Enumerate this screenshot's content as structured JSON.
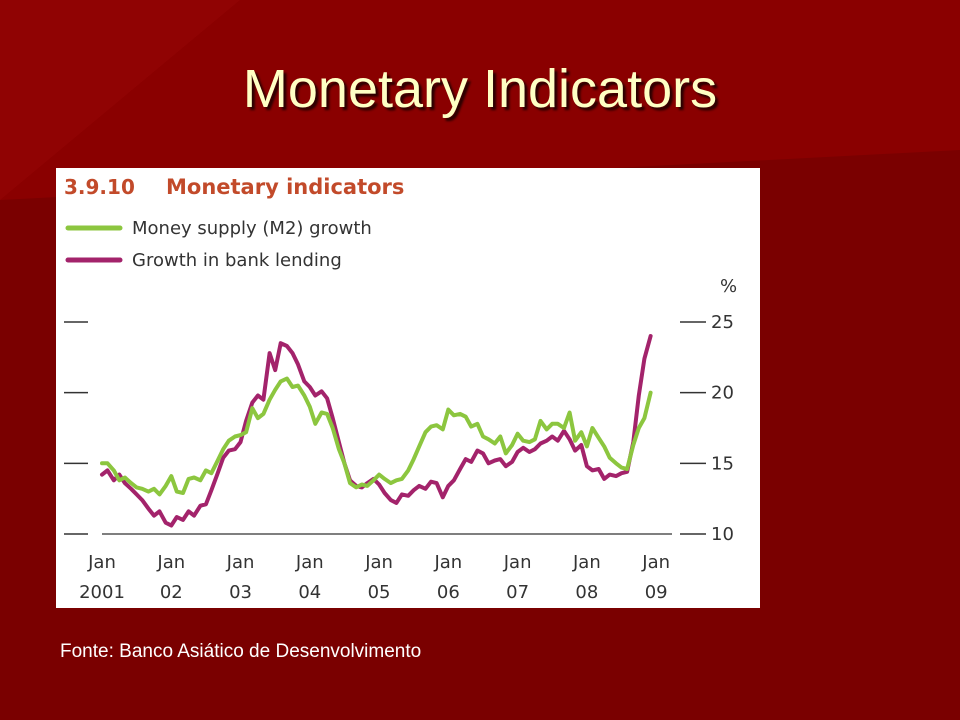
{
  "slide": {
    "title": "Monetary Indicators",
    "source": "Fonte: Banco Asiático de Desenvolvimento"
  },
  "colors": {
    "background": "#7a0000",
    "title": "#ffffc4",
    "m2": "#8cc63f",
    "lending": "#a3236b",
    "chart_title": "#c24a2a",
    "axis_text": "#333333"
  },
  "chart_data": {
    "type": "line",
    "figure_number": "3.9.10",
    "title": "Monetary indicators",
    "unit_label": "%",
    "ylim": [
      10,
      25
    ],
    "y_ticks": [
      10,
      15,
      20,
      25
    ],
    "xlim": [
      2001.0,
      2009.2
    ],
    "x_tick_positions": [
      2001,
      2002,
      2003,
      2004,
      2005,
      2006,
      2007,
      2008,
      2009
    ],
    "x_tick_labels": [
      [
        "Jan",
        "2001"
      ],
      [
        "Jan",
        "02"
      ],
      [
        "Jan",
        "03"
      ],
      [
        "Jan",
        "04"
      ],
      [
        "Jan",
        "05"
      ],
      [
        "Jan",
        "06"
      ],
      [
        "Jan",
        "07"
      ],
      [
        "Jan",
        "08"
      ],
      [
        "Jan",
        "09"
      ]
    ],
    "legend_position": "top-left",
    "grid": false,
    "series": [
      {
        "name": "Money supply (M2) growth",
        "color": "#8cc63f",
        "points": [
          [
            2001.0,
            15.0
          ],
          [
            2001.08,
            15.0
          ],
          [
            2001.17,
            14.5
          ],
          [
            2001.25,
            13.8
          ],
          [
            2001.33,
            14.0
          ],
          [
            2001.42,
            13.6
          ],
          [
            2001.5,
            13.3
          ],
          [
            2001.58,
            13.2
          ],
          [
            2001.67,
            13.0
          ],
          [
            2001.75,
            13.2
          ],
          [
            2001.83,
            12.8
          ],
          [
            2001.92,
            13.4
          ],
          [
            2002.0,
            14.1
          ],
          [
            2002.08,
            13.0
          ],
          [
            2002.17,
            12.9
          ],
          [
            2002.25,
            13.9
          ],
          [
            2002.33,
            14.0
          ],
          [
            2002.42,
            13.8
          ],
          [
            2002.5,
            14.5
          ],
          [
            2002.58,
            14.3
          ],
          [
            2002.67,
            15.2
          ],
          [
            2002.75,
            16.0
          ],
          [
            2002.83,
            16.6
          ],
          [
            2002.92,
            16.9
          ],
          [
            2003.0,
            17.0
          ],
          [
            2003.08,
            17.2
          ],
          [
            2003.17,
            18.9
          ],
          [
            2003.25,
            18.2
          ],
          [
            2003.33,
            18.5
          ],
          [
            2003.42,
            19.5
          ],
          [
            2003.5,
            20.2
          ],
          [
            2003.58,
            20.8
          ],
          [
            2003.67,
            21.0
          ],
          [
            2003.75,
            20.4
          ],
          [
            2003.83,
            20.5
          ],
          [
            2003.92,
            19.8
          ],
          [
            2004.0,
            19.0
          ],
          [
            2004.08,
            17.8
          ],
          [
            2004.17,
            18.6
          ],
          [
            2004.25,
            18.5
          ],
          [
            2004.33,
            17.5
          ],
          [
            2004.42,
            16.0
          ],
          [
            2004.5,
            15.0
          ],
          [
            2004.58,
            13.6
          ],
          [
            2004.67,
            13.3
          ],
          [
            2004.75,
            13.5
          ],
          [
            2004.83,
            13.4
          ],
          [
            2004.92,
            13.8
          ],
          [
            2005.0,
            14.2
          ],
          [
            2005.08,
            13.9
          ],
          [
            2005.17,
            13.6
          ],
          [
            2005.25,
            13.8
          ],
          [
            2005.33,
            13.9
          ],
          [
            2005.42,
            14.5
          ],
          [
            2005.5,
            15.3
          ],
          [
            2005.58,
            16.2
          ],
          [
            2005.67,
            17.2
          ],
          [
            2005.75,
            17.6
          ],
          [
            2005.83,
            17.7
          ],
          [
            2005.92,
            17.4
          ],
          [
            2006.0,
            18.8
          ],
          [
            2006.08,
            18.4
          ],
          [
            2006.17,
            18.5
          ],
          [
            2006.25,
            18.3
          ],
          [
            2006.33,
            17.6
          ],
          [
            2006.42,
            17.8
          ],
          [
            2006.5,
            16.9
          ],
          [
            2006.58,
            16.7
          ],
          [
            2006.67,
            16.4
          ],
          [
            2006.75,
            16.9
          ],
          [
            2006.83,
            15.7
          ],
          [
            2006.92,
            16.3
          ],
          [
            2007.0,
            17.1
          ],
          [
            2007.08,
            16.6
          ],
          [
            2007.17,
            16.5
          ],
          [
            2007.25,
            16.7
          ],
          [
            2007.33,
            18.0
          ],
          [
            2007.42,
            17.4
          ],
          [
            2007.5,
            17.8
          ],
          [
            2007.58,
            17.8
          ],
          [
            2007.67,
            17.5
          ],
          [
            2007.75,
            18.6
          ],
          [
            2007.83,
            16.6
          ],
          [
            2007.92,
            17.2
          ],
          [
            2008.0,
            16.2
          ],
          [
            2008.08,
            17.5
          ],
          [
            2008.17,
            16.8
          ],
          [
            2008.25,
            16.2
          ],
          [
            2008.33,
            15.4
          ],
          [
            2008.42,
            15.0
          ],
          [
            2008.5,
            14.7
          ],
          [
            2008.58,
            14.6
          ],
          [
            2008.67,
            16.3
          ],
          [
            2008.75,
            17.5
          ],
          [
            2008.83,
            18.2
          ],
          [
            2008.92,
            20.0
          ]
        ]
      },
      {
        "name": "Growth in bank lending",
        "color": "#a3236b",
        "points": [
          [
            2001.0,
            14.2
          ],
          [
            2001.08,
            14.5
          ],
          [
            2001.17,
            13.8
          ],
          [
            2001.25,
            14.2
          ],
          [
            2001.33,
            13.6
          ],
          [
            2001.42,
            13.2
          ],
          [
            2001.5,
            12.8
          ],
          [
            2001.58,
            12.4
          ],
          [
            2001.67,
            11.8
          ],
          [
            2001.75,
            11.3
          ],
          [
            2001.83,
            11.6
          ],
          [
            2001.92,
            10.8
          ],
          [
            2002.0,
            10.6
          ],
          [
            2002.08,
            11.2
          ],
          [
            2002.17,
            11.0
          ],
          [
            2002.25,
            11.6
          ],
          [
            2002.33,
            11.3
          ],
          [
            2002.42,
            12.0
          ],
          [
            2002.5,
            12.1
          ],
          [
            2002.58,
            13.1
          ],
          [
            2002.67,
            14.3
          ],
          [
            2002.75,
            15.4
          ],
          [
            2002.83,
            15.9
          ],
          [
            2002.92,
            16.0
          ],
          [
            2003.0,
            16.5
          ],
          [
            2003.08,
            18.0
          ],
          [
            2003.17,
            19.3
          ],
          [
            2003.25,
            19.8
          ],
          [
            2003.33,
            19.5
          ],
          [
            2003.42,
            22.8
          ],
          [
            2003.5,
            21.6
          ],
          [
            2003.58,
            23.5
          ],
          [
            2003.67,
            23.3
          ],
          [
            2003.75,
            22.8
          ],
          [
            2003.83,
            22.0
          ],
          [
            2003.92,
            20.8
          ],
          [
            2004.0,
            20.4
          ],
          [
            2004.08,
            19.8
          ],
          [
            2004.17,
            20.1
          ],
          [
            2004.25,
            19.6
          ],
          [
            2004.33,
            18.2
          ],
          [
            2004.42,
            16.5
          ],
          [
            2004.5,
            15.0
          ],
          [
            2004.58,
            13.8
          ],
          [
            2004.67,
            13.4
          ],
          [
            2004.75,
            13.3
          ],
          [
            2004.83,
            13.6
          ],
          [
            2004.92,
            13.9
          ],
          [
            2005.0,
            13.5
          ],
          [
            2005.08,
            12.9
          ],
          [
            2005.17,
            12.4
          ],
          [
            2005.25,
            12.2
          ],
          [
            2005.33,
            12.8
          ],
          [
            2005.42,
            12.7
          ],
          [
            2005.5,
            13.1
          ],
          [
            2005.58,
            13.4
          ],
          [
            2005.67,
            13.2
          ],
          [
            2005.75,
            13.7
          ],
          [
            2005.83,
            13.6
          ],
          [
            2005.92,
            12.6
          ],
          [
            2006.0,
            13.4
          ],
          [
            2006.08,
            13.8
          ],
          [
            2006.17,
            14.6
          ],
          [
            2006.25,
            15.3
          ],
          [
            2006.33,
            15.1
          ],
          [
            2006.42,
            15.9
          ],
          [
            2006.5,
            15.7
          ],
          [
            2006.58,
            15.0
          ],
          [
            2006.67,
            15.2
          ],
          [
            2006.75,
            15.3
          ],
          [
            2006.83,
            14.8
          ],
          [
            2006.92,
            15.1
          ],
          [
            2007.0,
            15.8
          ],
          [
            2007.08,
            16.1
          ],
          [
            2007.17,
            15.8
          ],
          [
            2007.25,
            16.0
          ],
          [
            2007.33,
            16.4
          ],
          [
            2007.42,
            16.6
          ],
          [
            2007.5,
            16.9
          ],
          [
            2007.58,
            16.6
          ],
          [
            2007.67,
            17.3
          ],
          [
            2007.75,
            16.7
          ],
          [
            2007.83,
            15.9
          ],
          [
            2007.92,
            16.3
          ],
          [
            2008.0,
            14.8
          ],
          [
            2008.08,
            14.5
          ],
          [
            2008.17,
            14.6
          ],
          [
            2008.25,
            13.9
          ],
          [
            2008.33,
            14.2
          ],
          [
            2008.42,
            14.1
          ],
          [
            2008.5,
            14.3
          ],
          [
            2008.58,
            14.4
          ],
          [
            2008.67,
            16.5
          ],
          [
            2008.75,
            19.8
          ],
          [
            2008.83,
            22.4
          ],
          [
            2008.92,
            24.0
          ]
        ]
      }
    ]
  }
}
